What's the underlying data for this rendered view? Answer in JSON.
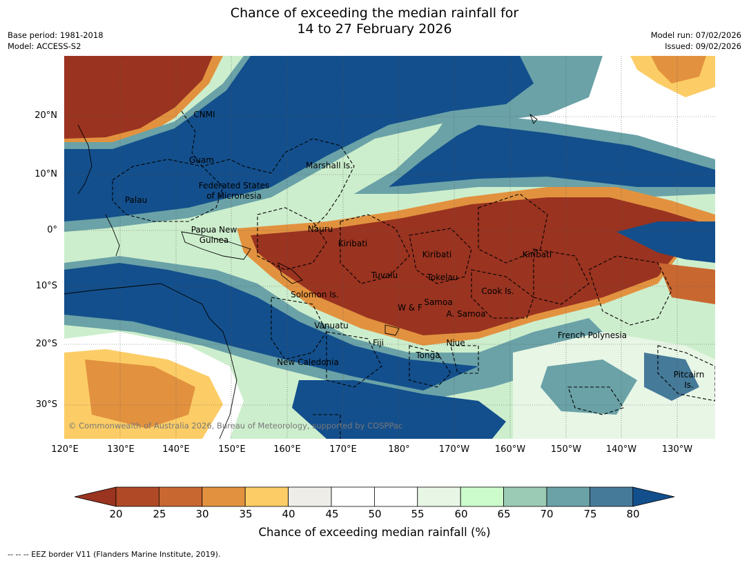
{
  "title": {
    "line1": "Chance of exceeding the median rainfall for",
    "line2": "14 to 27 February 2026"
  },
  "meta": {
    "base_period": "Base period: 1981-2018",
    "model": "Model: ACCESS-S2",
    "model_run": "Model run: 07/02/2026",
    "issued": "Issued: 09/02/2026"
  },
  "axes": {
    "lat_labels": [
      "20°N",
      "10°N",
      "0°",
      "10°S",
      "20°S",
      "30°S"
    ],
    "lon_labels": [
      "120°E",
      "130°E",
      "140°E",
      "150°E",
      "160°E",
      "170°E",
      "180°",
      "170°W",
      "160°W",
      "150°W",
      "140°W",
      "130°W"
    ]
  },
  "places": {
    "cnmi": "CNMI",
    "guam": "Guam",
    "marshall": "Marshall Is.",
    "fsm_1": "Federated States",
    "fsm_2": "of Micronesia",
    "palau": "Palau",
    "png_1": "Papua New",
    "png_2": "Guinea",
    "nauru": "Nauru",
    "kiribati_w": "Kiribati",
    "kiribati_c": "Kiribati",
    "kiribati_e": "Kiribati",
    "tuvalu": "Tuvalu",
    "tokelau": "Tokelau",
    "solomon": "Solomon Is.",
    "cook": "Cook Is.",
    "samoa": "Samoa",
    "wf": "W & F",
    "amsamoa": "A. Samoa",
    "vanuatu": "Vanuatu",
    "fiji": "Fiji",
    "niue": "Niue",
    "frenchpoly": "French Polynesia",
    "tonga": "Tonga",
    "newcal": "New Caledonia",
    "pitcairn_1": "Pitcairn",
    "pitcairn_2": "Is."
  },
  "copyright": "© Commonwealth of Australia 2026, Bureau of Meteorology, supported by COSPPac",
  "colorbar": {
    "ticks": [
      "20",
      "25",
      "30",
      "35",
      "40",
      "45",
      "50",
      "55",
      "60",
      "65",
      "70",
      "75",
      "80"
    ],
    "colors": [
      "#9a3320",
      "#b04a26",
      "#c96730",
      "#e2923f",
      "#fccd66",
      "#efede8",
      "#ffffff",
      "#ffffff",
      "#e8f6e6",
      "#ccfccc",
      "#9ccbb5",
      "#6aa2a7",
      "#467a99",
      "#134f8c"
    ],
    "label": "Chance of exceeding median rainfall (%)"
  },
  "footnote": "--  --  -- EEZ border V11 (Flanders Marine Institute, 2019)."
}
